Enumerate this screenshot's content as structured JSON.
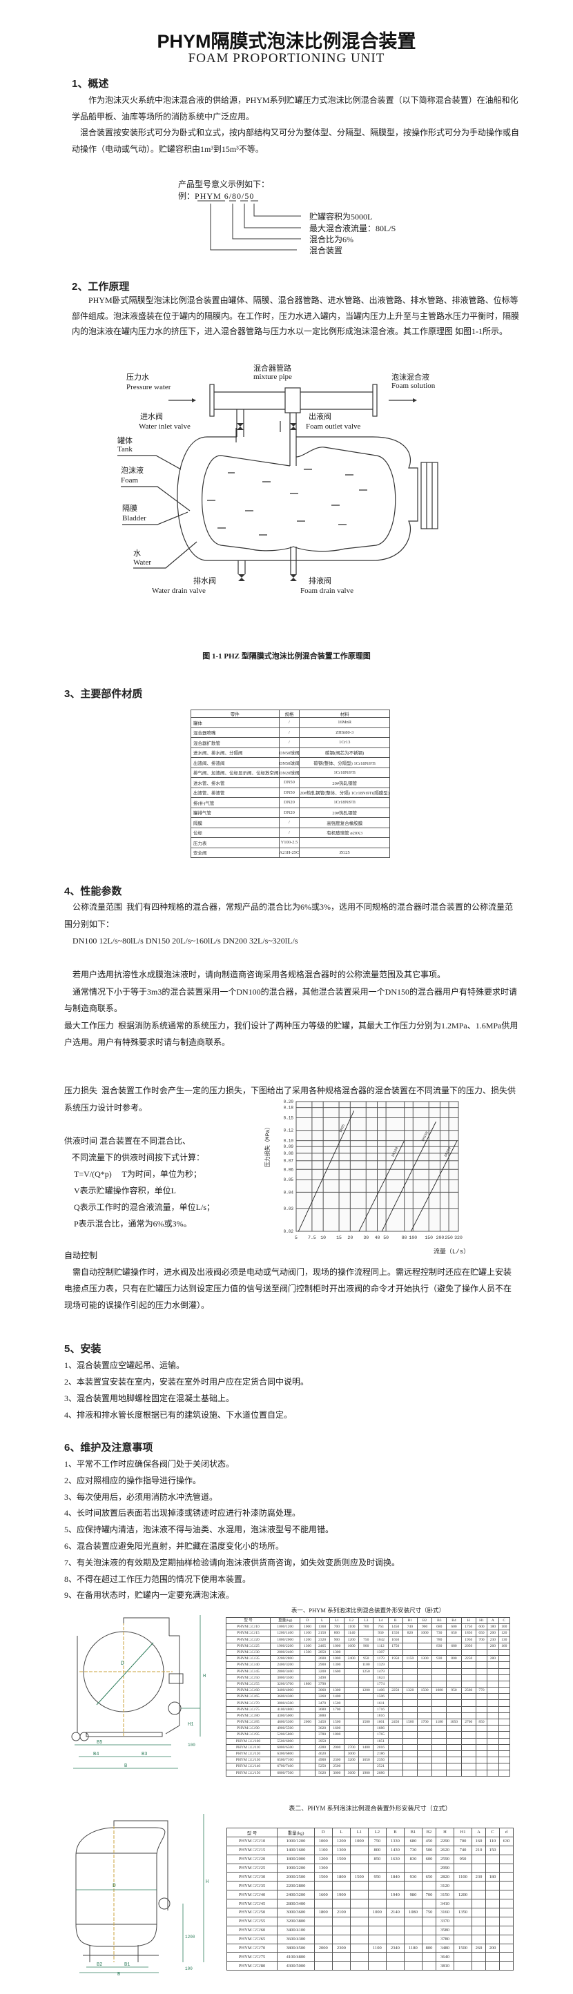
{
  "header": {
    "title": "PHYM隔膜式泡沫比例混合装置",
    "subtitle": "FOAM PROPORTIONING UNIT"
  },
  "sec1": {
    "heading": "1、概述",
    "para1": "作为泡沫灭火系统中泡沫混合液的供给源，PHYM系列贮罐压力式泡沫比例混合装置（以下简称混合装置）在油船和化学品船甲板、油库等场所的消防系统中广泛应用。",
    "para2": "混合装置按安装形式可分为卧式和立式，按内部结构又可分为整体型、分隔型、隔膜型，按操作形式可分为手动操作或自动操作（电动或气动）。贮罐容积由1m³到15m³不等。",
    "model": {
      "intro": "产品型号意义示例如下：",
      "example_prefix": "例：",
      "example": "PHYM 6/80/50",
      "labels": [
        "贮罐容积为5000L",
        "最大混合液流量：80L/S",
        "混合比为6%",
        "混合装置"
      ]
    }
  },
  "sec2": {
    "heading": "2、工作原理",
    "para": "PHYM卧式隔膜型泡沫比例混合装置由罐体、隔膜、混合器管路、进水管路、出液管路、排水管路、排液管路、位标等部件组成。泡沫液盛装在位于罐内的隔膜内。在工作时，压力水进入罐内，当罐内压力上升至与主管路水压力平衡时，隔膜内的泡沫液在罐内压力水的挤压下，进入混合器管路与压力水以一定比例形成泡沫混合液。其工作原理图 如图1-1所示。",
    "diagram": {
      "pressure_water_cn": "压力水",
      "pressure_water_en": "Pressure water",
      "mixture_pipe_cn": "混合器管路",
      "mixture_pipe_en": "mixture pipe",
      "foam_solution_cn": "泡沫混合液",
      "foam_solution_en": "Foam solution",
      "inlet_valve_cn": "进水阀",
      "inlet_valve_en": "Water inlet valve",
      "outlet_valve_cn": "出液阀",
      "outlet_valve_en": "Foam outlet valve",
      "tank_cn": "罐体",
      "tank_en": "Tank",
      "foam_cn": "泡沫液",
      "foam_en": "Foam",
      "bladder_cn": "隔膜",
      "bladder_en": "Bladder",
      "water_cn": "水",
      "water_en": "Water",
      "water_drain_cn": "排水阀",
      "water_drain_en": "Water drain valve",
      "foam_drain_cn": "排液阀",
      "foam_drain_en": "Foam drain valve"
    },
    "caption": "图 1-1 PHZ 型隔膜式泡沫比例混合装置工作原理图"
  },
  "sec3": {
    "heading": "3、主要部件材质",
    "headers": [
      "零件",
      "规格",
      "材料"
    ],
    "rows": [
      [
        "罐体",
        "/",
        "16MnR"
      ],
      [
        "混合器喷嘴",
        "/",
        "ZHSi80-3"
      ],
      [
        "混合器扩散管",
        "/",
        "1Cr13"
      ],
      [
        "进水阀、排水阀、分隔阀",
        "DN50球阀",
        "碳钢(阀芯为不锈钢)"
      ],
      [
        "出液阀、排液阀",
        "DN50球阀",
        "碳钢(整体、分隔型) 1Cr18Ni9Ti"
      ],
      [
        "排气阀、加液阀、位标显示阀、位标放空阀",
        "DN20球阀",
        "1Cr18Ni9Ti"
      ],
      [
        "进水管、排水管",
        "DN50",
        "20#热轧钢管"
      ],
      [
        "出液管、排液管",
        "DN50",
        "20#热轧钢管(整体、分隔) 1Cr18Ni9Ti(隔膜型)"
      ],
      [
        "排(补)气管",
        "DN20",
        "1Cr18Ni9Ti"
      ],
      [
        "罐排气管",
        "DN20",
        "20#热轧钢管"
      ],
      [
        "隔膜",
        "/",
        "高强度复合橡胶膜"
      ],
      [
        "位标",
        "/",
        "有机玻璃管 ø20X3"
      ],
      [
        "压力表",
        "Y100-2.5",
        ""
      ],
      [
        "安全阀",
        "A21H-25C",
        "ZG25"
      ]
    ]
  },
  "sec4": {
    "heading": "4、性能参数",
    "flow_label": "公称流量范围",
    "flow_text": "我们有四种规格的混合器，常规产品的混合比为6%或3%，选用不同规格的混合器时混合装置的公称流量范围分别如下：",
    "flow_ranges": "DN100  12L/s~80lL/s   DN150  20L/s~160lL/s   DN200  32L/s~320lL/s",
    "note1": "若用户选用抗溶性水成膜泡沫液时，请向制造商咨询采用各规格混合器时的公称流量范围及其它事项。",
    "note2": "通常情况下小于等于3m3的混合装置采用一个DN100的混合器，其他混合装置采用一个DN150的混合器用户有特殊要求时请与制造商联系。",
    "pressure_label": "最大工作压力",
    "pressure_text": "根据消防系统通常的系统压力，我们设计了两种压力等级的贮罐，其最大工作压力分别为1.2MPa、1.6MPa供用户选用。用户有特殊要求时请与制造商联系。",
    "loss_label": "压力损失",
    "loss_text": "混合装置工作时会产生一定的压力损失，下图给出了采用各种规格混合器的混合装置在不同流量下的压力、损失供系统压力设计时参考。",
    "supply": {
      "line1": "供液时间  混合装置在不同混合比、",
      "line2": "不同流量下的供液时间按下式计算：",
      "line3": "T=V/(Q*p)     T为时间，单位为秒；",
      "line4": "V表示贮罐操作容积，单位L",
      "line5": "Q表示工作时的混合液流量，单位L/s；",
      "line6": "P表示混合比，通常为6%或3%。"
    },
    "auto_heading": "自动控制",
    "auto_text": "需自动控制贮罐操作时，进水阀及出液阀必须是电动或气动阀门，现场的操作流程同上。需远程控制时还应在贮罐上安装电接点压力表，只有在贮罐压力达到设定压力值的信号送至阀门控制柜时开出液阀的命令才开始执行（避免了操作人员不在现场可能的误操作引起的压力水倒灌）。"
  },
  "chart_data": {
    "type": "line",
    "xlabel": "流量（L/s）",
    "ylabel": "压力损失（MPa）",
    "x_scale": "log",
    "y_scale": "log",
    "xlim": [
      5,
      320
    ],
    "ylim": [
      0.02,
      0.2
    ],
    "x_ticks": [
      5,
      7.5,
      10,
      15,
      20,
      30,
      40,
      50,
      80,
      100,
      150,
      200,
      250,
      320
    ],
    "x_tick_labels": [
      "5",
      "7.5",
      "10",
      "15",
      "20",
      "30",
      "40",
      "50",
      "80",
      "100",
      "150",
      "200",
      "250",
      "320"
    ],
    "y_ticks": [
      0.02,
      0.03,
      0.04,
      0.05,
      0.06,
      0.07,
      0.08,
      0.09,
      0.1,
      0.12,
      0.15,
      0.18,
      0.2
    ],
    "y_tick_labels": [
      "0.02",
      "0.03",
      "0.04",
      "0.05",
      "0.06",
      "0.07",
      "0.08",
      "0.09",
      "0.10",
      "0.12",
      "0.15",
      "0.18",
      "0.20"
    ],
    "grid": true,
    "series": [
      {
        "name": "DN65",
        "x": [
          5.3,
          22
        ],
        "y": [
          0.02,
          0.17
        ]
      },
      {
        "name": "DN100",
        "x": [
          25,
          80
        ],
        "y": [
          0.02,
          0.1
        ]
      },
      {
        "name": "DN150",
        "x": [
          45,
          180
        ],
        "y": [
          0.02,
          0.14
        ]
      },
      {
        "name": "DN200",
        "x": [
          95,
          310
        ],
        "y": [
          0.02,
          0.1
        ]
      }
    ]
  },
  "sec5": {
    "heading": "5、安装",
    "items": [
      "1、混合装置应空罐起吊、运输。",
      "2、本装置宜安装在室内，安装在室外时用户应在定货合同中说明。",
      "3、混合装置用地脚螺栓固定在混凝土基础上。",
      "4、排液和排水管长度根据已有的建筑设施、下水道位置自定。"
    ]
  },
  "sec6": {
    "heading": "6、维护及注意事项",
    "items": [
      "1、平常不工作时应确保各阀门处于关闭状态。",
      "2、应对照相应的操作指导进行操作。",
      "3、每次使用后，必须用消防水冲洗管道。",
      "4、长时间放置后表面若出现掉漆或锈迹时应进行补漆防腐处理。",
      "5、应保持罐内清洁，泡沫液不得与油类、水混用，泡沫液型号不能用错。",
      "6、混合装置应避免阳光直射，并贮藏在温度变化小的场所。",
      "7、有关泡沫液的有效期及定期抽样检验请向泡沫液供货商咨询，如失效变质则应及时调换。",
      "8、不得在超过工作压力范围的情况下使用本装置。",
      "9、在备用状态时，贮罐内一定要充满泡沫液。"
    ]
  },
  "drawing_h": {
    "labels": [
      "D",
      "H",
      "H1",
      "B5",
      "B4",
      "B3",
      "B",
      "100"
    ]
  },
  "drawing_v": {
    "labels": [
      "D",
      "H",
      "B2",
      "B1",
      "B",
      "1200",
      "100"
    ]
  },
  "table1": {
    "caption": "表一、PHYM 系列泡沫比例混合装置外形安装尺寸（卧式）",
    "headers": [
      "型  号",
      "重量(kg)",
      "D",
      "L",
      "L1",
      "L2",
      "L3",
      "L4",
      "B",
      "B1",
      "B2",
      "B3",
      "B4",
      "H",
      "H1",
      "A",
      "C"
    ],
    "rows": [
      [
        "PHYM □/□/10",
        "1000/1200",
        "1000",
        "1360",
        "700",
        "1100",
        "700",
        "763",
        "1450",
        "740",
        "900",
        "680",
        "600",
        "1750",
        "600",
        "180",
        "100"
      ],
      [
        "PHYM □/□/15",
        "1200/1400",
        "1100",
        "2150",
        "800",
        "1140",
        "",
        "930",
        "1550",
        "820",
        "1000",
        "730",
        "650",
        "1850",
        "650",
        "200",
        "120"
      ],
      [
        "PHYM □/□/20",
        "1800/2000",
        "1200",
        "2320",
        "900",
        "1200",
        "750",
        "1042",
        "1650",
        "",
        "",
        "780",
        "",
        "1950",
        "700",
        "230",
        "130"
      ],
      [
        "PHYM □/□/25",
        "1900/2200",
        "1300",
        "2465",
        "1000",
        "1600",
        "900",
        "1112",
        "1750",
        "",
        "",
        "830",
        "680",
        "2050",
        "",
        "260",
        "160"
      ],
      [
        "PHYM □/□/30",
        "2000/2400",
        "1500",
        "2850",
        "1300",
        "",
        "",
        "1307",
        "",
        "",
        "",
        "",
        "",
        "",
        "",
        "",
        ""
      ],
      [
        "PHYM □/□/35",
        "2200/2800",
        "",
        "2600",
        "1000",
        "2400",
        "950",
        "1179",
        "1950",
        "1150",
        "1300",
        "930",
        "800",
        "2250",
        "",
        "280",
        ""
      ],
      [
        "PHYM □/□/40",
        "2400/3200",
        "",
        "2900",
        "1300",
        "",
        "1100",
        "1329",
        "",
        "",
        "",
        "",
        "",
        "",
        "",
        "",
        ""
      ],
      [
        "PHYM □/□/45",
        "2800/3400",
        "",
        "3200",
        "1600",
        "",
        "1250",
        "1479",
        "",
        "",
        "",
        "",
        "",
        "",
        "",
        "",
        ""
      ],
      [
        "PHYM □/□/50",
        "3000/3500",
        "",
        "3490",
        "",
        "",
        "",
        "1624",
        "",
        "",
        "",
        "",
        "",
        "",
        "",
        "",
        ""
      ],
      [
        "PHYM □/□/55",
        "3200/3700",
        "1800",
        "3790",
        "",
        "",
        "",
        "1774",
        "",
        "",
        "",
        "",
        "",
        "",
        "",
        "",
        ""
      ],
      [
        "PHYM □/□/60",
        "3400/4000",
        "",
        "3060",
        "1300",
        "",
        "1200",
        "1406",
        "2250",
        "1320",
        "1500",
        "1080",
        "950",
        "2560",
        "770",
        "",
        ""
      ],
      [
        "PHYM □/□/65",
        "3600/4300",
        "",
        "3260",
        "1400",
        "",
        "",
        "1506",
        "",
        "",
        "",
        "",
        "",
        "",
        "",
        "",
        ""
      ],
      [
        "PHYM □/□/70",
        "3800/4500",
        "",
        "3470",
        "1500",
        "",
        "",
        "1611",
        "",
        "",
        "",
        "",
        "",
        "",
        "",
        "",
        ""
      ],
      [
        "PHYM □/□/75",
        "4100/4800",
        "",
        "3680",
        "1700",
        "",
        "",
        "1716",
        "",
        "",
        "",
        "",
        "",
        "",
        "",
        "",
        ""
      ],
      [
        "PHYM □/□/80",
        "4300/5000",
        "",
        "3880",
        "",
        "",
        "",
        "1816",
        "",
        "",
        "",
        "",
        "",
        "",
        "",
        "",
        ""
      ],
      [
        "PHYM □/□/85",
        "4600/5300",
        "2000",
        "3450",
        "1500",
        "",
        "1500",
        "1601",
        "2450",
        "1500",
        "1700",
        "1180",
        "1050",
        "2760",
        "850",
        "",
        ""
      ],
      [
        "PHYM □/□/90",
        "4900/5500",
        "",
        "3620",
        "1600",
        "",
        "",
        "1686",
        "",
        "",
        "",
        "",
        "",
        "",
        "",
        "",
        ""
      ],
      [
        "PHYM □/□/95",
        "5200/5800",
        "",
        "3780",
        "1800",
        "",
        "",
        "1765",
        "",
        "",
        "",
        "",
        "",
        "",
        "",
        "",
        ""
      ],
      [
        "PHYM □/□/100",
        "5500/6000",
        "",
        "3950",
        "",
        "",
        "",
        "1851",
        "",
        "",
        "",
        "",
        "",
        "",
        "",
        "",
        ""
      ],
      [
        "PHYM □/□/110",
        "6000/6500",
        "",
        "4280",
        "2000",
        "2700",
        "1400",
        "2016",
        "",
        "",
        "",
        "",
        "",
        "",
        "",
        "",
        ""
      ],
      [
        "PHYM □/□/120",
        "6300/6800",
        "",
        "4620",
        "",
        "3000",
        "",
        "2186",
        "",
        "",
        "",
        "",
        "",
        "",
        "",
        "",
        ""
      ],
      [
        "PHYM □/□/130",
        "6500/7100",
        "",
        "4900",
        "2300",
        "3200",
        "1650",
        "2356",
        "",
        "",
        "",
        "",
        "",
        "",
        "",
        "",
        ""
      ],
      [
        "PHYM □/□/140",
        "6700/7400",
        "",
        "5250",
        "2500",
        "",
        "",
        "2521",
        "",
        "",
        "",
        "",
        "",
        "",
        "",
        "",
        ""
      ],
      [
        "PHYM □/□/150",
        "6800/7500",
        "",
        "5620",
        "3000",
        "3600",
        "1900",
        "2686",
        "",
        "",
        "",
        "",
        "",
        "",
        "",
        "",
        ""
      ]
    ]
  },
  "table2": {
    "caption": "表二、PHYM 系列泡沫比例混合装置外形安装尺寸（立式）",
    "headers": [
      "型  号",
      "重量(kg)",
      "D",
      "L",
      "L1",
      "L2",
      "B",
      "B1",
      "B2",
      "H",
      "H1",
      "A",
      "C",
      "d"
    ],
    "rows": [
      [
        "PHYM □/□/10",
        "1000/1200",
        "1000",
        "1200",
        "1000",
        "750",
        "1330",
        "680",
        "450",
        "2290",
        "700",
        "160",
        "110",
        "630"
      ],
      [
        "PHYM □/□/15",
        "1400/1600",
        "1100",
        "1300",
        "",
        "800",
        "1430",
        "730",
        "500",
        "2620",
        "740",
        "210",
        "150",
        ""
      ],
      [
        "PHYM □/□/20",
        "1800/2000",
        "1200",
        "1500",
        "",
        "850",
        "1630",
        "830",
        "600",
        "2590",
        "950",
        "",
        "",
        ""
      ],
      [
        "PHYM □/□/25",
        "1900/2200",
        "1300",
        "",
        "",
        "",
        "",
        "",
        "",
        "2990",
        "",
        "",
        "",
        ""
      ],
      [
        "PHYM □/□/30",
        "2000/2500",
        "1500",
        "1800",
        "1500",
        "950",
        "1840",
        "930",
        "650",
        "2820",
        "1100",
        "230",
        "180",
        ""
      ],
      [
        "PHYM □/□/35",
        "2200/2800",
        "",
        "",
        "",
        "",
        "",
        "",
        "",
        "3120",
        "",
        "",
        "",
        ""
      ],
      [
        "PHYM □/□/40",
        "2400/3200",
        "1600",
        "1900",
        "",
        "",
        "1940",
        "980",
        "700",
        "3150",
        "1200",
        "",
        "",
        ""
      ],
      [
        "PHYM □/□/45",
        "2800/3400",
        "",
        "",
        "",
        "",
        "",
        "",
        "",
        "3410",
        "",
        "",
        "",
        ""
      ],
      [
        "PHYM □/□/50",
        "3000/3600",
        "1800",
        "2100",
        "",
        "1000",
        "2140",
        "1080",
        "750",
        "3160",
        "1350",
        "",
        "",
        ""
      ],
      [
        "PHYM □/□/55",
        "3200/3800",
        "",
        "",
        "",
        "",
        "",
        "",
        "",
        "3370",
        "",
        "",
        "",
        ""
      ],
      [
        "PHYM □/□/60",
        "3400/4100",
        "",
        "",
        "",
        "",
        "",
        "",
        "",
        "3580",
        "",
        "",
        "",
        ""
      ],
      [
        "PHYM □/□/65",
        "3600/4300",
        "",
        "",
        "",
        "",
        "",
        "",
        "",
        "3780",
        "",
        "",
        "",
        ""
      ],
      [
        "PHYM □/□/70",
        "3800/4500",
        "2000",
        "2300",
        "",
        "1100",
        "2340",
        "1180",
        "800",
        "3480",
        "1500",
        "260",
        "200",
        ""
      ],
      [
        "PHYM □/□/75",
        "4100/4800",
        "",
        "",
        "",
        "",
        "",
        "",
        "",
        "3640",
        "",
        "",
        "",
        ""
      ],
      [
        "PHYM □/□/80",
        "4300/5000",
        "",
        "",
        "",
        "",
        "",
        "",
        "",
        "3810",
        "",
        "",
        "",
        ""
      ]
    ]
  }
}
